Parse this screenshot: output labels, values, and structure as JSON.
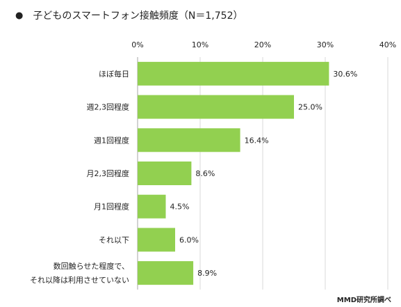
{
  "title": "子どものスマートフォン接触頻度（N＝1,752）",
  "bullet": "●",
  "source": "MMD研究所調べ",
  "colors": {
    "bar": "#92d050",
    "grid": "#d9d9d9",
    "axis": "#a6a6a6",
    "text": "#222222"
  },
  "chart_data": {
    "type": "bar",
    "orientation": "horizontal",
    "title": "子どものスマートフォン接触頻度（N＝1,752）",
    "categories": [
      [
        "ほぼ毎日"
      ],
      [
        "週2,3回程度"
      ],
      [
        "週1回程度"
      ],
      [
        "月2,3回程度"
      ],
      [
        "月1回程度"
      ],
      [
        "それ以下"
      ],
      [
        "数回触らせた程度で、",
        "それ以降は利用させていない"
      ]
    ],
    "values": [
      30.6,
      25.0,
      16.4,
      8.6,
      4.5,
      6.0,
      8.9
    ],
    "value_labels": [
      "30.6%",
      "25.0%",
      "16.4%",
      "8.6%",
      "4.5%",
      "6.0%",
      "8.9%"
    ],
    "xlim": [
      0,
      40
    ],
    "ticks": [
      0,
      10,
      20,
      30,
      40
    ],
    "tick_labels": [
      "0%",
      "10%",
      "20%",
      "30%",
      "40%"
    ],
    "grid": true,
    "tick_position": "top"
  }
}
